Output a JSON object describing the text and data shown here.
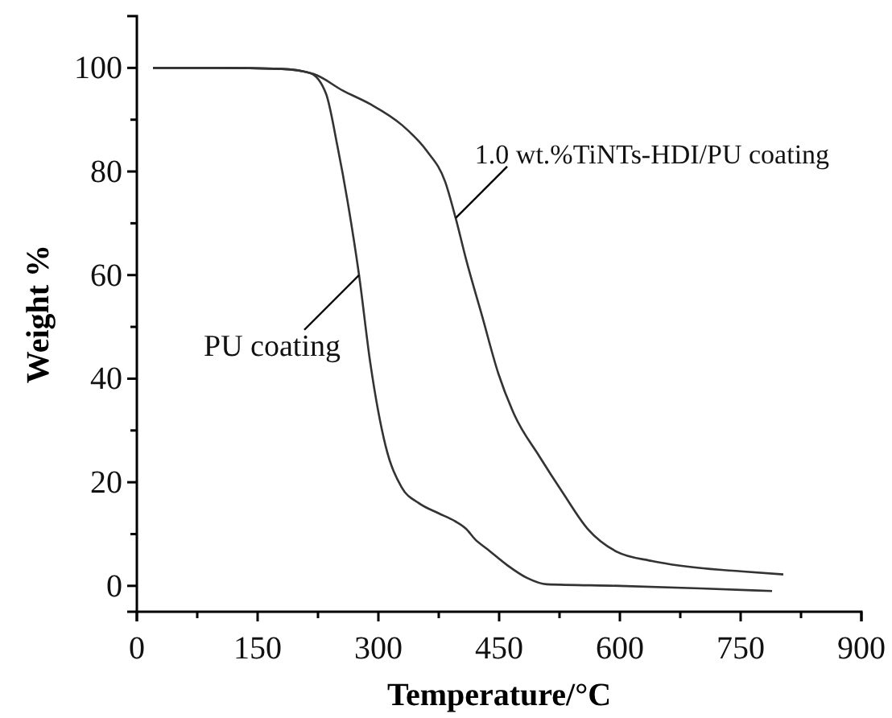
{
  "chart_data": {
    "type": "line",
    "xlabel": "Temperature/°C",
    "ylabel": "Weight %",
    "xlim": [
      0,
      900
    ],
    "ylim": [
      -5,
      110
    ],
    "xticks": [
      0,
      150,
      300,
      450,
      600,
      750,
      900
    ],
    "yticks": [
      0,
      20,
      40,
      60,
      80,
      100
    ],
    "grid": false,
    "marker": "none",
    "line_style": "solid",
    "series": [
      {
        "color": "#333333",
        "x": [
          20,
          100,
          180,
          215,
          235,
          249,
          262,
          276,
          290,
          309,
          329,
          350,
          375,
          395,
          409,
          420,
          436,
          460,
          485,
          509,
          600,
          700,
          789
        ],
        "values": [
          100,
          100,
          99.8,
          99,
          95,
          85,
          74,
          60,
          43,
          27,
          19,
          16,
          14,
          12.5,
          11,
          9,
          7,
          4,
          1.5,
          0.3,
          0,
          -0.5,
          -1
        ]
      },
      {
        "color": "#333333",
        "x": [
          20,
          100,
          180,
          220,
          256,
          290,
          329,
          360,
          383,
          396,
          409,
          429,
          449,
          469,
          500,
          529,
          560,
          596,
          640,
          696,
          750,
          803
        ],
        "values": [
          100,
          100,
          99.8,
          98.8,
          95.6,
          93,
          89,
          84,
          78,
          71,
          63,
          52,
          41,
          33,
          25,
          18,
          11,
          6.6,
          4.8,
          3.5,
          2.8,
          2.2
        ]
      }
    ],
    "annotations": [
      {
        "text": "PU coating",
        "x": 276,
        "y": 60
      },
      {
        "text": "1.0 wt.%TiNTs-HDI/PU coating",
        "x": 396,
        "y": 71
      }
    ]
  }
}
